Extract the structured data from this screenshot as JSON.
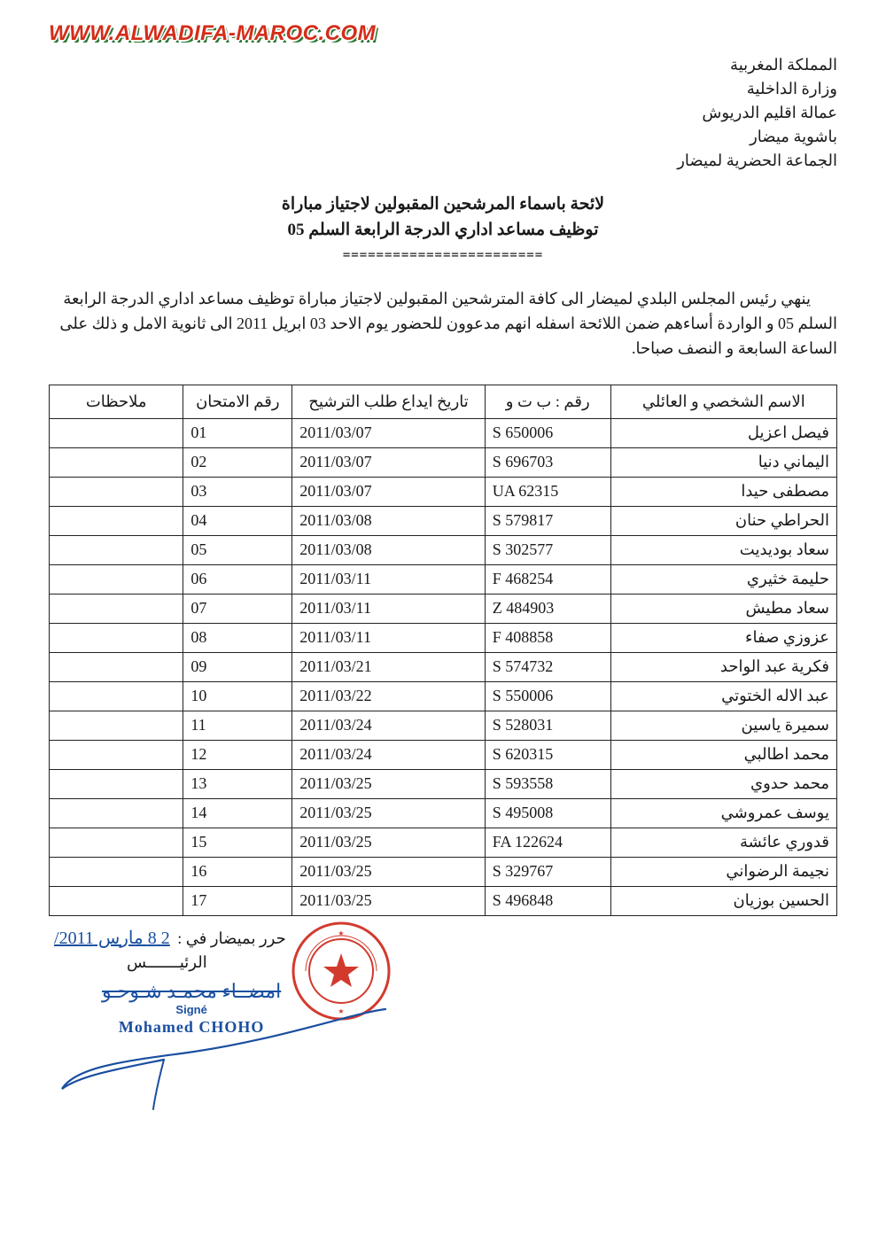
{
  "watermark": "WWW.ALWADIFA-MAROC.COM",
  "letterhead": [
    "المملكة المغربية",
    "وزارة الداخلية",
    "عمالة اقليم الدريوش",
    "باشوية ميضار",
    "الجماعة الحضرية لميضار"
  ],
  "title": {
    "line1": "لائحة باسماء المرشحين المقبولين لاجتياز مباراة",
    "line2": "توظيف مساعد اداري الدرجة الرابعة السلم 05"
  },
  "separator": "========================",
  "intro": "ينهي رئيس المجلس البلدي لميضار الى كافة المترشحين المقبولين لاجتياز مباراة توظيف مساعد اداري الدرجة الرابعة السلم 05 و الواردة أساءهم ضمن اللائحة اسفله انهم مدعوون للحضور يوم الاحد 03 ابريل 2011 الى ثانوية الامل و ذلك على الساعة السابعة و النصف صباحا.",
  "table": {
    "columns": [
      "الاسم الشخصي و العائلي",
      "رقم : ب ت و",
      "تاريخ ايداع طلب الترشيح",
      "رقم الامتحان",
      "ملاحظات"
    ],
    "rows": [
      {
        "name": "فيصل اعزيل",
        "cin": "S 650006",
        "date": "2011/03/07",
        "exam": "01",
        "notes": ""
      },
      {
        "name": "اليماني دنيا",
        "cin": "S 696703",
        "date": "2011/03/07",
        "exam": "02",
        "notes": ""
      },
      {
        "name": "مصطفى حيدا",
        "cin": "UA 62315",
        "date": "2011/03/07",
        "exam": "03",
        "notes": ""
      },
      {
        "name": "الحراطي حنان",
        "cin": "S 579817",
        "date": "2011/03/08",
        "exam": "04",
        "notes": ""
      },
      {
        "name": "سعاد بوديديت",
        "cin": "S 302577",
        "date": "2011/03/08",
        "exam": "05",
        "notes": ""
      },
      {
        "name": "حليمة خثيري",
        "cin": "F 468254",
        "date": "2011/03/11",
        "exam": "06",
        "notes": ""
      },
      {
        "name": "سعاد مطيش",
        "cin": "Z 484903",
        "date": "2011/03/11",
        "exam": "07",
        "notes": ""
      },
      {
        "name": "عزوزي صفاء",
        "cin": "F 408858",
        "date": "2011/03/11",
        "exam": "08",
        "notes": ""
      },
      {
        "name": "فكرية عبد الواحد",
        "cin": "S 574732",
        "date": "2011/03/21",
        "exam": "09",
        "notes": ""
      },
      {
        "name": "عبد الاله الختوتي",
        "cin": "S 550006",
        "date": "2011/03/22",
        "exam": "10",
        "notes": ""
      },
      {
        "name": "سميرة ياسين",
        "cin": "S 528031",
        "date": "2011/03/24",
        "exam": "11",
        "notes": ""
      },
      {
        "name": "محمد اطالبي",
        "cin": "S 620315",
        "date": "2011/03/24",
        "exam": "12",
        "notes": ""
      },
      {
        "name": "محمد حدوي",
        "cin": "S 593558",
        "date": "2011/03/25",
        "exam": "13",
        "notes": ""
      },
      {
        "name": "يوسف عمروشي",
        "cin": "S 495008",
        "date": "2011/03/25",
        "exam": "14",
        "notes": ""
      },
      {
        "name": "قدوري عائشة",
        "cin": "FA 122624",
        "date": "2011/03/25",
        "exam": "15",
        "notes": ""
      },
      {
        "name": "نجيمة الرضواني",
        "cin": "S 329767",
        "date": "2011/03/25",
        "exam": "16",
        "notes": ""
      },
      {
        "name": "الحسين بوزيان",
        "cin": "S 496848",
        "date": "2011/03/25",
        "exam": "17",
        "notes": ""
      }
    ]
  },
  "footer": {
    "date_prefix": "حرر بميضار في :",
    "date_hand": "2 8 مارس 2011/",
    "president": "الرئيـــــــس",
    "sign_scribble": "امضــاء\nمحمـد شـوحـو",
    "sign_signe": "Signé",
    "sign_name": "Mohamed CHOHO"
  },
  "colors": {
    "text": "#1a1a1a",
    "border": "#222222",
    "watermark_red": "#d42d1a",
    "watermark_green": "#2d7a34",
    "ink_blue": "#1a4fa0",
    "stamp_red": "#d23a2e"
  }
}
